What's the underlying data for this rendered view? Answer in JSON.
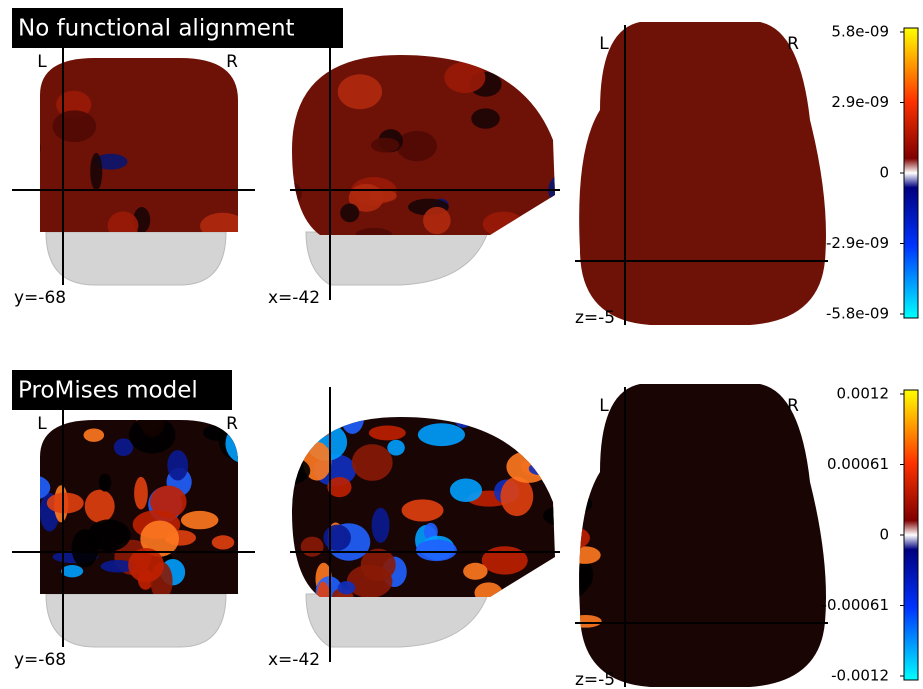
{
  "panels": [
    {
      "title": "No functional alignment",
      "views": [
        {
          "left": "L",
          "right": "R",
          "coord": "y=-68"
        },
        {
          "coord": "x=-42"
        },
        {
          "left": "L",
          "right": "R",
          "coord": "z=-5"
        }
      ],
      "colorbar_ticks": [
        "5.8e-09",
        "2.9e-09",
        "0",
        "-2.9e-09",
        "-5.8e-09"
      ]
    },
    {
      "title": "ProMises model",
      "views": [
        {
          "left": "L",
          "right": "R",
          "coord": "y=-68"
        },
        {
          "coord": "x=-42"
        },
        {
          "left": "L",
          "right": "R",
          "coord": "z=-5"
        }
      ],
      "colorbar_ticks": [
        "0.0012",
        "0.00061",
        "0",
        "-0.00061",
        "-0.0012"
      ]
    }
  ]
}
